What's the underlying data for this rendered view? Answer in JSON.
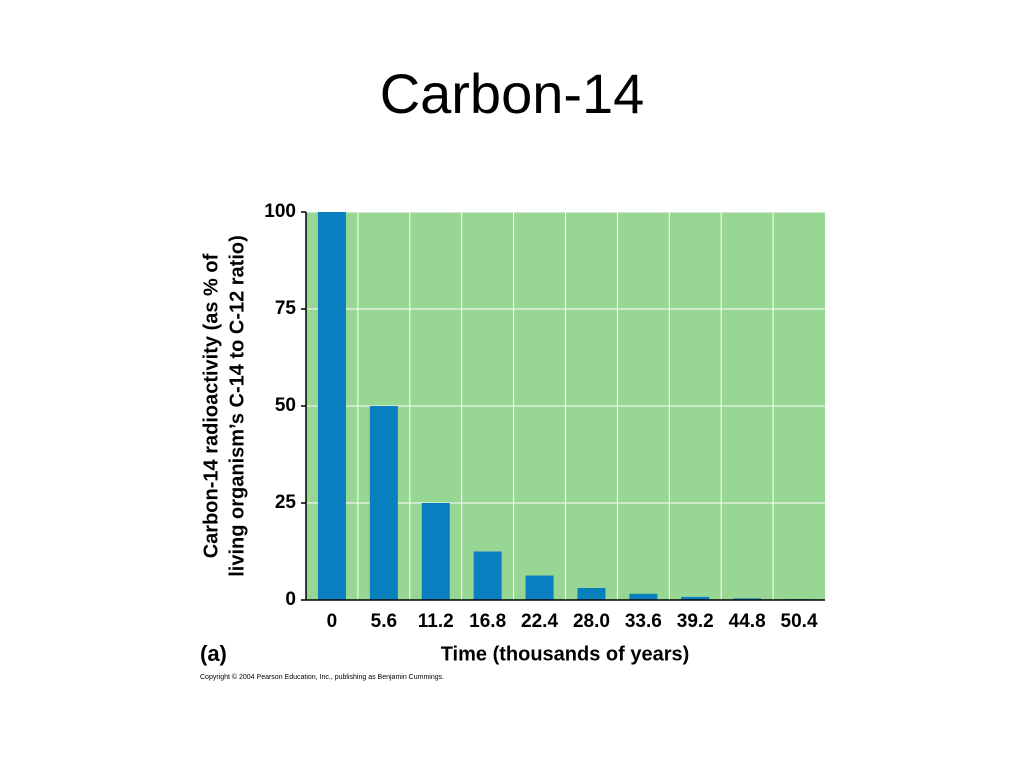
{
  "chart_data": {
    "type": "bar",
    "title": "Carbon-14",
    "panel_label": "(a)",
    "x_label": "Time (thousands of years)",
    "y_label": [
      "Carbon-14 radioactivity (as % of",
      "living organism’s C-14 to C-12 ratio)"
    ],
    "copyright": "Copyright © 2004 Pearson Education, Inc., publishing as Benjamin Cummings.",
    "categories": [
      "0",
      "5.6",
      "11.2",
      "16.8",
      "22.4",
      "28.0",
      "33.6",
      "39.2",
      "44.8",
      "50.4"
    ],
    "values": [
      100,
      50,
      25,
      12.5,
      6.3,
      3.1,
      1.6,
      0.8,
      0.4,
      0.2
    ],
    "color": "#0a7fc0",
    "background": "#98d694",
    "ylim": [
      0,
      100
    ],
    "yticks": [
      0,
      25,
      50,
      75,
      100
    ],
    "grid": true
  }
}
